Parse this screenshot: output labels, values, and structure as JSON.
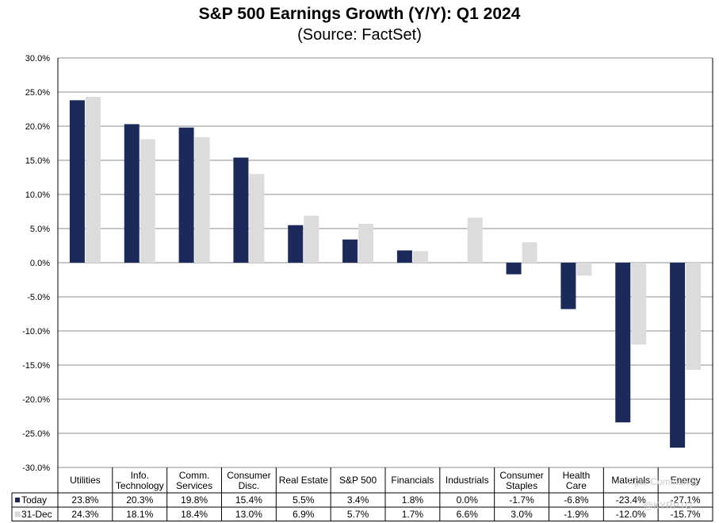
{
  "chart_data": {
    "type": "bar",
    "title": "S&P 500 Earnings Growth (Y/Y): Q1 2024",
    "subtitle": "(Source: FactSet)",
    "xlabel": "",
    "ylabel": "",
    "ylim": [
      -30,
      30
    ],
    "ytick_labels": [
      "30.0%",
      "25.0%",
      "20.0%",
      "15.0%",
      "10.0%",
      "5.0%",
      "0.0%",
      "-5.0%",
      "-10.0%",
      "-15.0%",
      "-20.0%",
      "-25.0%",
      "-30.0%"
    ],
    "categories": [
      [
        "Utilities"
      ],
      [
        "Info.",
        "Technology"
      ],
      [
        "Comm.",
        "Services"
      ],
      [
        "Consumer",
        "Disc."
      ],
      [
        "Real Estate"
      ],
      [
        "S&P 500"
      ],
      [
        "Financials"
      ],
      [
        "Industrials"
      ],
      [
        "Consumer",
        "Staples"
      ],
      [
        "Health",
        "Care"
      ],
      [
        "Materials"
      ],
      [
        "Energy"
      ]
    ],
    "series": [
      {
        "name": "Today",
        "color": "#1b2a5a",
        "values": [
          23.8,
          20.3,
          19.8,
          15.4,
          5.5,
          3.4,
          1.8,
          0.0,
          -1.7,
          -6.8,
          -23.4,
          -27.1
        ],
        "labels": [
          "23.8%",
          "20.3%",
          "19.8%",
          "15.4%",
          "5.5%",
          "3.4%",
          "1.8%",
          "0.0%",
          "-1.7%",
          "-6.8%",
          "-23.4%",
          "-27.1%"
        ]
      },
      {
        "name": "31-Dec",
        "color": "#dcdcdc",
        "values": [
          24.3,
          18.1,
          18.4,
          13.0,
          6.9,
          5.7,
          1.7,
          6.6,
          3.0,
          -1.9,
          -12.0,
          -15.7
        ],
        "labels": [
          "24.3%",
          "18.1%",
          "18.4%",
          "13.0%",
          "6.9%",
          "5.7%",
          "1.7%",
          "6.6%",
          "3.0%",
          "-1.9%",
          "-12.0%",
          "-15.7%"
        ]
      }
    ],
    "grid": true
  },
  "watermark": {
    "line1": "Tiger Community",
    "line2": "@KYRPTO"
  }
}
